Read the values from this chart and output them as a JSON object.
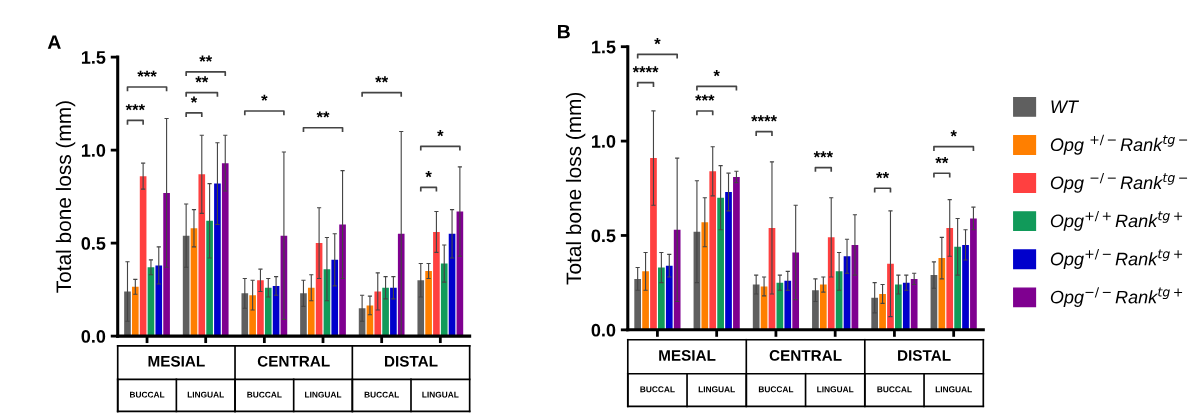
{
  "chart_data": [
    {
      "type": "bar",
      "title": "A",
      "ylabel": "Total bone loss (mm)",
      "categories": [
        "BUCCAL",
        "LINGUAL",
        "BUCCAL",
        "LINGUAL",
        "BUCCAL",
        "LINGUAL"
      ],
      "ylim": [
        0,
        1.5
      ],
      "yticks": [
        {
          "value": 0,
          "label": "0.0"
        },
        {
          "value": 0.5,
          "label": "0.5"
        },
        {
          "value": 1,
          "label": "1.0"
        },
        {
          "value": 1.5,
          "label": "1.5"
        }
      ],
      "grid": false,
      "legend": false,
      "series": [
        {
          "color": "#5f5f5f",
          "values": [
            0.24,
            0.54,
            0.23,
            0.23,
            0.15,
            0.3
          ],
          "errors": [
            0.16,
            0.17,
            0.08,
            0.07,
            0.07,
            0.09
          ]
        },
        {
          "color": "#ff7f00",
          "values": [
            0.265,
            0.58,
            0.22,
            0.26,
            0.165,
            0.35
          ],
          "errors": [
            0.04,
            0.1,
            0.08,
            0.07,
            0.05,
            0.04
          ]
        },
        {
          "color": "#ff4040",
          "values": [
            0.86,
            0.87,
            0.3,
            0.5,
            0.24,
            0.56
          ],
          "errors": [
            0.07,
            0.21,
            0.06,
            0.19,
            0.1,
            0.11
          ]
        },
        {
          "color": "#119a5a",
          "values": [
            0.37,
            0.62,
            0.26,
            0.36,
            0.26,
            0.39
          ],
          "errors": [
            0.04,
            0.2,
            0.05,
            0.17,
            0.06,
            0.1
          ]
        },
        {
          "color": "#0000cc",
          "values": [
            0.38,
            0.82,
            0.27,
            0.41,
            0.26,
            0.55
          ],
          "errors": [
            0.1,
            0.22,
            0.05,
            0.14,
            0.06,
            0.13
          ]
        },
        {
          "color": "#7f0090",
          "values": [
            0.77,
            0.93,
            0.54,
            0.6,
            0.55,
            0.67
          ],
          "errors": [
            0.4,
            0.15,
            0.45,
            0.29,
            0.55,
            0.24
          ]
        }
      ],
      "annotations": [
        "MESIAL",
        "CENTRAL",
        "DISTAL",
        "***",
        "***",
        "*",
        "**",
        "**",
        "*",
        "**",
        "**",
        "*",
        "*"
      ]
    },
    {
      "type": "bar",
      "title": "B",
      "ylabel": "Total bone loss (mm)",
      "categories": [
        "BUCCAL",
        "LINGUAL",
        "BUCCAL",
        "LINGUAL",
        "BUCCAL",
        "LINGUAL"
      ],
      "ylim": [
        0,
        1.5
      ],
      "yticks": [
        {
          "value": 0,
          "label": "0.0"
        },
        {
          "value": 0.5,
          "label": "0.5"
        },
        {
          "value": 1,
          "label": "1.0"
        },
        {
          "value": 1.5,
          "label": "1.5"
        }
      ],
      "grid": false,
      "legend": "right",
      "series": [
        {
          "name": "WT",
          "color": "#5f5f5f",
          "values": [
            0.27,
            0.52,
            0.24,
            0.21,
            0.17,
            0.29
          ],
          "errors": [
            0.06,
            0.27,
            0.05,
            0.06,
            0.08,
            0.07
          ]
        },
        {
          "name": "Opg $^{+/−}$Rank$^{tg−}$",
          "color": "#ff7f00",
          "values": [
            0.31,
            0.57,
            0.23,
            0.24,
            0.19,
            0.38
          ],
          "errors": [
            0.1,
            0.13,
            0.05,
            0.04,
            0.05,
            0.11
          ]
        },
        {
          "name": "Opg $^{−/−}$Rank$^{tg−}$",
          "color": "#ff4040",
          "values": [
            0.91,
            0.84,
            0.54,
            0.49,
            0.35,
            0.54
          ],
          "errors": [
            0.25,
            0.13,
            0.35,
            0.21,
            0.28,
            0.15
          ]
        },
        {
          "name": "Opg$^{+/+}$Rank$^{tg+}$",
          "color": "#119a5a",
          "values": [
            0.33,
            0.7,
            0.25,
            0.31,
            0.24,
            0.44
          ],
          "errors": [
            0.08,
            0.17,
            0.04,
            0.1,
            0.05,
            0.15
          ]
        },
        {
          "name": "Opg$^{+/−}$Rank$^{tg+}$",
          "color": "#0000cc",
          "values": [
            0.34,
            0.73,
            0.26,
            0.39,
            0.25,
            0.45
          ],
          "errors": [
            0.06,
            0.1,
            0.05,
            0.09,
            0.04,
            0.08
          ]
        },
        {
          "name": "Opg$^{−/−}$Rank$^{tg+}$",
          "color": "#7f0090",
          "values": [
            0.53,
            0.81,
            0.41,
            0.45,
            0.27,
            0.59
          ],
          "errors": [
            0.38,
            0.03,
            0.25,
            0.16,
            0.03,
            0.06
          ]
        }
      ],
      "annotations": [
        "MESIAL",
        "CENTRAL",
        "DISTAL",
        "****",
        "*",
        "***",
        "*",
        "****",
        "***",
        "**",
        "**",
        "*"
      ]
    }
  ]
}
